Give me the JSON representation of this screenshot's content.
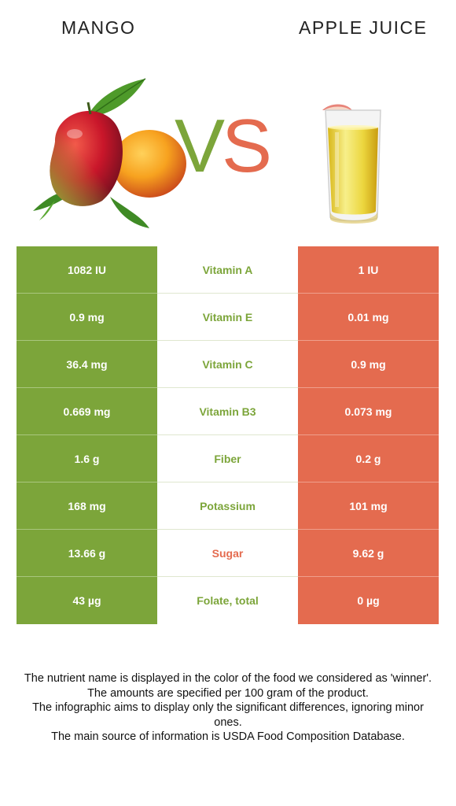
{
  "header": {
    "left_food": "MANGO",
    "right_food": "APPLE JUICE",
    "vs_v": "V",
    "vs_s": "S"
  },
  "colors": {
    "left_winner": "#7ca53a",
    "right_winner": "#e46b4f"
  },
  "rows": [
    {
      "left": "1082 IU",
      "nutrient": "Vitamin A",
      "right": "1 IU",
      "winner": "left"
    },
    {
      "left": "0.9 mg",
      "nutrient": "Vitamin E",
      "right": "0.01 mg",
      "winner": "left"
    },
    {
      "left": "36.4 mg",
      "nutrient": "Vitamin C",
      "right": "0.9 mg",
      "winner": "left"
    },
    {
      "left": "0.669 mg",
      "nutrient": "Vitamin B3",
      "right": "0.073 mg",
      "winner": "left"
    },
    {
      "left": "1.6 g",
      "nutrient": "Fiber",
      "right": "0.2 g",
      "winner": "left"
    },
    {
      "left": "168 mg",
      "nutrient": "Potassium",
      "right": "101 mg",
      "winner": "left"
    },
    {
      "left": "13.66 g",
      "nutrient": "Sugar",
      "right": "9.62 g",
      "winner": "right"
    },
    {
      "left": "43 µg",
      "nutrient": "Folate, total",
      "right": "0 µg",
      "winner": "left"
    }
  ],
  "notes": [
    "The nutrient name is displayed in the color of the food we considered as 'winner'.",
    "The amounts are specified per 100 gram of the product.",
    "The infographic aims to display only the significant differences, ignoring minor ones.",
    "The main source of information is USDA Food Composition Database."
  ],
  "images": {
    "left": "mango-image",
    "right": "apple-juice-glass-image"
  }
}
